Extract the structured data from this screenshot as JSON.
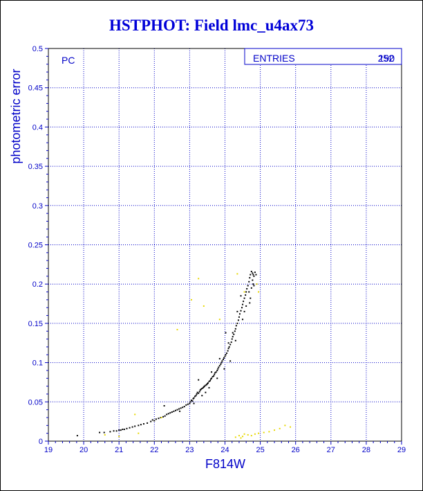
{
  "title": "HSTPHOT: Field lmc_u4ax73",
  "stats_box": {
    "label": "ENTRIES",
    "value_a": "190",
    "value_b": "252"
  },
  "chart_data": {
    "type": "scatter",
    "title": "HSTPHOT: Field lmc_u4ax73",
    "xlabel": "F814W",
    "ylabel": "photometric error",
    "annotation": "PC",
    "xlim": [
      19,
      29
    ],
    "ylim": [
      0,
      0.5
    ],
    "x_ticks": [
      "19",
      "20",
      "21",
      "22",
      "23",
      "24",
      "25",
      "26",
      "27",
      "28",
      "29"
    ],
    "y_ticks": [
      "0",
      "0.05",
      "0.1",
      "0.15",
      "0.2",
      "0.25",
      "0.3",
      "0.35",
      "0.4",
      "0.45",
      "0.5"
    ],
    "grid": true,
    "colors": {
      "axis": "#0000c8",
      "grid": "#0000c8",
      "series_black": "#000000",
      "series_yellow": "#e8d800"
    },
    "series": [
      {
        "color": "#000000",
        "points": [
          [
            19.82,
            0.007
          ],
          [
            20.45,
            0.011
          ],
          [
            20.58,
            0.011
          ],
          [
            20.75,
            0.012
          ],
          [
            20.85,
            0.013
          ],
          [
            20.93,
            0.013
          ],
          [
            21.0,
            0.014
          ],
          [
            21.05,
            0.014
          ],
          [
            21.1,
            0.015
          ],
          [
            21.15,
            0.015
          ],
          [
            21.22,
            0.016
          ],
          [
            21.3,
            0.017
          ],
          [
            21.38,
            0.018
          ],
          [
            21.45,
            0.019
          ],
          [
            21.55,
            0.02
          ],
          [
            21.62,
            0.021
          ],
          [
            21.7,
            0.022
          ],
          [
            21.8,
            0.023
          ],
          [
            21.9,
            0.025
          ],
          [
            21.95,
            0.027
          ],
          [
            22.0,
            0.026
          ],
          [
            22.05,
            0.028
          ],
          [
            22.12,
            0.029
          ],
          [
            22.18,
            0.03
          ],
          [
            22.25,
            0.031
          ],
          [
            22.3,
            0.032
          ],
          [
            22.35,
            0.034
          ],
          [
            22.4,
            0.035
          ],
          [
            22.45,
            0.036
          ],
          [
            22.5,
            0.037
          ],
          [
            22.55,
            0.038
          ],
          [
            22.6,
            0.039
          ],
          [
            22.65,
            0.04
          ],
          [
            22.7,
            0.041
          ],
          [
            22.75,
            0.042
          ],
          [
            22.8,
            0.043
          ],
          [
            22.85,
            0.044
          ],
          [
            22.9,
            0.046
          ],
          [
            22.95,
            0.047
          ],
          [
            23.0,
            0.048
          ],
          [
            23.02,
            0.05
          ],
          [
            23.05,
            0.052
          ],
          [
            23.08,
            0.051
          ],
          [
            23.1,
            0.054
          ],
          [
            23.12,
            0.055
          ],
          [
            23.15,
            0.057
          ],
          [
            23.18,
            0.058
          ],
          [
            23.2,
            0.06
          ],
          [
            23.22,
            0.062
          ],
          [
            23.25,
            0.061
          ],
          [
            23.28,
            0.063
          ],
          [
            23.3,
            0.065
          ],
          [
            23.32,
            0.066
          ],
          [
            23.35,
            0.067
          ],
          [
            23.38,
            0.068
          ],
          [
            23.4,
            0.069
          ],
          [
            23.42,
            0.07
          ],
          [
            23.45,
            0.071
          ],
          [
            23.48,
            0.072
          ],
          [
            23.5,
            0.073
          ],
          [
            23.52,
            0.074
          ],
          [
            23.55,
            0.076
          ],
          [
            23.58,
            0.077
          ],
          [
            23.6,
            0.079
          ],
          [
            23.62,
            0.08
          ],
          [
            23.65,
            0.082
          ],
          [
            23.68,
            0.083
          ],
          [
            23.7,
            0.085
          ],
          [
            23.72,
            0.087
          ],
          [
            23.75,
            0.088
          ],
          [
            23.78,
            0.09
          ],
          [
            23.8,
            0.092
          ],
          [
            23.82,
            0.094
          ],
          [
            23.85,
            0.096
          ],
          [
            23.88,
            0.098
          ],
          [
            23.9,
            0.1
          ],
          [
            23.92,
            0.102
          ],
          [
            23.95,
            0.104
          ],
          [
            23.97,
            0.106
          ],
          [
            24.0,
            0.108
          ],
          [
            24.02,
            0.11
          ],
          [
            24.05,
            0.112
          ],
          [
            24.08,
            0.115
          ],
          [
            24.1,
            0.118
          ],
          [
            24.12,
            0.12
          ],
          [
            24.15,
            0.123
          ],
          [
            24.18,
            0.126
          ],
          [
            24.2,
            0.13
          ],
          [
            24.22,
            0.133
          ],
          [
            24.25,
            0.136
          ],
          [
            24.28,
            0.14
          ],
          [
            24.3,
            0.143
          ],
          [
            24.32,
            0.147
          ],
          [
            24.35,
            0.15
          ],
          [
            24.38,
            0.154
          ],
          [
            24.4,
            0.158
          ],
          [
            24.42,
            0.162
          ],
          [
            24.45,
            0.166
          ],
          [
            24.48,
            0.17
          ],
          [
            24.5,
            0.174
          ],
          [
            24.52,
            0.178
          ],
          [
            24.55,
            0.182
          ],
          [
            24.58,
            0.186
          ],
          [
            24.6,
            0.19
          ],
          [
            24.62,
            0.194
          ],
          [
            24.65,
            0.198
          ],
          [
            24.68,
            0.203
          ],
          [
            24.7,
            0.208
          ],
          [
            24.72,
            0.212
          ],
          [
            24.75,
            0.216
          ],
          [
            24.78,
            0.214
          ],
          [
            24.8,
            0.212
          ],
          [
            24.82,
            0.21
          ],
          [
            22.28,
            0.045
          ],
          [
            22.72,
            0.038
          ],
          [
            23.25,
            0.078
          ],
          [
            23.45,
            0.062
          ],
          [
            23.62,
            0.088
          ],
          [
            23.85,
            0.105
          ],
          [
            24.02,
            0.138
          ],
          [
            24.1,
            0.125
          ],
          [
            24.22,
            0.138
          ],
          [
            24.35,
            0.165
          ],
          [
            24.45,
            0.185
          ],
          [
            24.5,
            0.155
          ],
          [
            24.6,
            0.172
          ],
          [
            24.68,
            0.19
          ],
          [
            24.72,
            0.182
          ],
          [
            24.75,
            0.195
          ],
          [
            24.78,
            0.205
          ],
          [
            24.8,
            0.2
          ],
          [
            24.82,
            0.198
          ],
          [
            24.85,
            0.215
          ],
          [
            24.88,
            0.212
          ],
          [
            24.7,
            0.176
          ],
          [
            24.55,
            0.165
          ],
          [
            24.3,
            0.128
          ],
          [
            24.15,
            0.102
          ],
          [
            23.98,
            0.092
          ],
          [
            23.78,
            0.08
          ],
          [
            23.55,
            0.068
          ],
          [
            23.35,
            0.058
          ],
          [
            23.12,
            0.048
          ]
        ]
      },
      {
        "color": "#e8d800",
        "points": [
          [
            20.6,
            0.008
          ],
          [
            21.0,
            0.006
          ],
          [
            21.45,
            0.034
          ],
          [
            21.55,
            0.01
          ],
          [
            22.2,
            0.03
          ],
          [
            22.65,
            0.142
          ],
          [
            23.05,
            0.18
          ],
          [
            23.25,
            0.207
          ],
          [
            23.4,
            0.172
          ],
          [
            23.85,
            0.155
          ],
          [
            24.35,
            0.213
          ],
          [
            24.55,
            0.19
          ],
          [
            24.4,
            0.007
          ],
          [
            24.5,
            0.006
          ],
          [
            24.55,
            0.009
          ],
          [
            24.65,
            0.008
          ],
          [
            24.75,
            0.007
          ],
          [
            24.85,
            0.009
          ],
          [
            24.95,
            0.01
          ],
          [
            25.1,
            0.011
          ],
          [
            25.25,
            0.012
          ],
          [
            25.4,
            0.014
          ],
          [
            25.55,
            0.016
          ],
          [
            25.7,
            0.02
          ],
          [
            25.85,
            0.018
          ],
          [
            24.3,
            0.005
          ],
          [
            24.45,
            0.004
          ],
          [
            24.95,
            0.19
          ],
          [
            24.9,
            0.2
          ]
        ]
      }
    ]
  }
}
